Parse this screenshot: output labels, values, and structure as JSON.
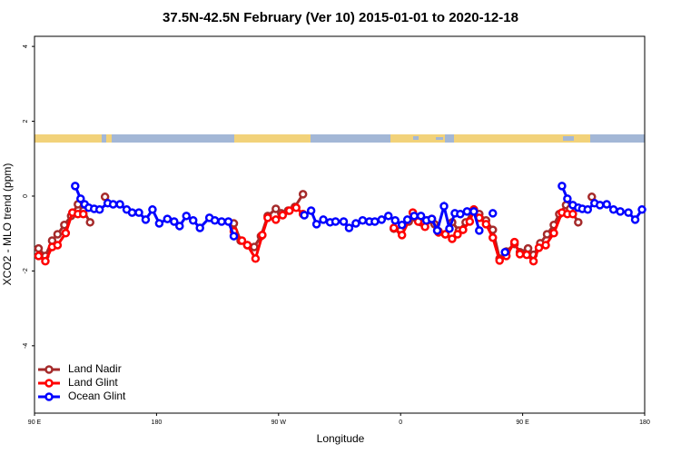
{
  "chart_data": {
    "type": "line",
    "title": "37.5N-42.5N February (Ver 10)   2015-01-01 to 2020-12-18",
    "x_label": "Longitude",
    "y_label": "XCO2 - MLO trend (ppm)",
    "xlim": [
      90,
      540
    ],
    "ylim": [
      -5.8,
      4.27
    ],
    "xticks": [
      {
        "value": 90,
        "label": "90 E"
      },
      180,
      {
        "value": 270,
        "label": "90 W"
      },
      {
        "value": 360,
        "label": "0"
      },
      {
        "value": 450,
        "label": "90 E"
      },
      {
        "value": 540,
        "label": "180"
      }
    ],
    "yticks": [
      4,
      2,
      0,
      -2,
      -4
    ],
    "legend": "bottom-left",
    "series": [
      {
        "name": "Land Nadir",
        "color": "#a52a2a",
        "x": [
          93,
          98,
          103,
          107,
          112,
          117,
          122,
          126,
          131,
          null,
          142,
          null,
          237,
          242,
          247,
          252,
          257,
          262,
          268,
          272,
          277,
          282,
          288,
          null,
          355,
          360,
          366,
          371,
          375,
          380,
          385,
          388,
          393,
          398,
          403,
          408,
          414,
          418,
          423,
          428,
          433,
          438,
          444,
          448,
          454,
          458,
          463,
          468,
          473,
          477,
          482,
          485,
          491,
          null,
          501
        ],
        "values": [
          -1.4,
          -1.6,
          -1.19,
          -1.02,
          -0.77,
          -0.53,
          -0.22,
          -0.39,
          -0.7,
          null,
          -0.02,
          null,
          -0.73,
          -1.19,
          -1.31,
          -1.36,
          -1.07,
          -0.53,
          -0.34,
          -0.46,
          -0.39,
          -0.29,
          0.05,
          null,
          -0.87,
          -0.92,
          -0.68,
          -0.58,
          -0.7,
          -0.65,
          -0.75,
          -0.94,
          -1.02,
          -0.7,
          -0.92,
          -0.7,
          -0.36,
          -0.48,
          -0.65,
          -0.9,
          -1.67,
          -1.48,
          -1.28,
          -1.5,
          -1.4,
          -1.57,
          -1.26,
          -1.02,
          -0.77,
          -0.48,
          -0.24,
          -0.34,
          -0.7,
          null,
          -0.02
        ]
      },
      {
        "name": "Land Glint",
        "color": "#ff0000",
        "x": [
          93,
          98,
          103,
          107,
          113,
          118,
          122,
          126,
          null,
          237,
          243,
          247,
          253,
          258,
          262,
          268,
          273,
          278,
          283,
          288,
          null,
          355,
          361,
          369,
          373,
          378,
          383,
          388,
          393,
          398,
          402,
          406,
          411,
          414,
          418,
          423,
          428,
          433,
          438,
          444,
          448,
          453,
          458,
          462,
          467,
          473,
          479,
          483,
          487
        ],
        "values": [
          -1.6,
          -1.74,
          -1.36,
          -1.31,
          -0.99,
          -0.44,
          -0.48,
          -0.48,
          null,
          -0.94,
          -1.19,
          -1.31,
          -1.67,
          -1.04,
          -0.58,
          -0.63,
          -0.51,
          -0.39,
          -0.31,
          -0.48,
          null,
          -0.85,
          -1.04,
          -0.44,
          -0.68,
          -0.82,
          -0.61,
          -0.97,
          -1.02,
          -1.14,
          -1.02,
          -0.9,
          -0.68,
          -0.36,
          -0.58,
          -0.75,
          -1.11,
          -1.72,
          -1.6,
          -1.23,
          -1.55,
          -1.57,
          -1.74,
          -1.38,
          -1.31,
          -0.99,
          -0.44,
          -0.48,
          -0.48
        ]
      },
      {
        "name": "Ocean Glint",
        "color": "#0000ff",
        "x": [
          120,
          124,
          127,
          130,
          134,
          138,
          144,
          148,
          153,
          158,
          162,
          167,
          172,
          177,
          182,
          188,
          193,
          197,
          202,
          207,
          212,
          219,
          223,
          228,
          233,
          237,
          null,
          289,
          294,
          298,
          303,
          308,
          312,
          318,
          322,
          327,
          332,
          337,
          341,
          346,
          351,
          356,
          361,
          365,
          370,
          375,
          379,
          383,
          387,
          392,
          396,
          400,
          404,
          409,
          414,
          418,
          null,
          428,
          null,
          437,
          null,
          479,
          483,
          487,
          491,
          494,
          498,
          503,
          507,
          512,
          517,
          522,
          528,
          533,
          538
        ],
        "values": [
          0.27,
          -0.07,
          -0.22,
          -0.31,
          -0.34,
          -0.36,
          -0.19,
          -0.22,
          -0.22,
          -0.36,
          -0.44,
          -0.44,
          -0.63,
          -0.36,
          -0.73,
          -0.61,
          -0.68,
          -0.8,
          -0.53,
          -0.65,
          -0.85,
          -0.58,
          -0.65,
          -0.68,
          -0.68,
          -1.07,
          null,
          -0.51,
          -0.39,
          -0.75,
          -0.63,
          -0.7,
          -0.68,
          -0.68,
          -0.85,
          -0.73,
          -0.65,
          -0.68,
          -0.68,
          -0.63,
          -0.53,
          -0.65,
          -0.77,
          -0.63,
          -0.53,
          -0.53,
          -0.65,
          -0.61,
          -0.92,
          -0.27,
          -0.87,
          -0.46,
          -0.48,
          -0.41,
          -0.41,
          -0.92,
          null,
          -0.46,
          null,
          -1.5,
          null,
          0.27,
          -0.07,
          -0.24,
          -0.31,
          -0.34,
          -0.36,
          -0.19,
          -0.24,
          -0.22,
          -0.36,
          -0.41,
          -0.44,
          -0.63,
          -0.36
        ]
      }
    ]
  }
}
